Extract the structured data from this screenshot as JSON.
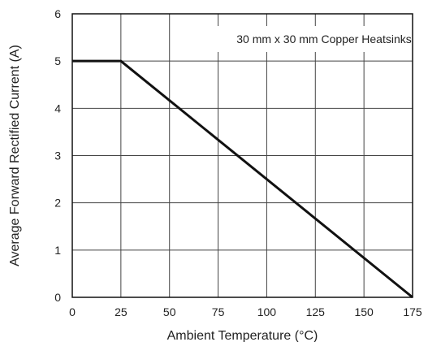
{
  "chart_data": {
    "type": "line",
    "title": "",
    "xlabel": "Ambient Temperature (°C)",
    "ylabel": "Average Forward Rectified Current (A)",
    "xlim": [
      0,
      175
    ],
    "ylim": [
      0,
      6
    ],
    "xticks": [
      0,
      25,
      50,
      75,
      100,
      125,
      150,
      175
    ],
    "yticks": [
      0,
      1,
      2,
      3,
      4,
      5,
      6
    ],
    "grid": true,
    "series": [
      {
        "x": [
          0,
          25,
          175
        ],
        "y": [
          5,
          5,
          0
        ]
      }
    ],
    "annotations": [
      {
        "text": "30 mm x 30 mm Copper Heatsinks"
      }
    ],
    "colors": {
      "line": "#111111",
      "grid": "#444444",
      "frame": "#111111"
    }
  }
}
